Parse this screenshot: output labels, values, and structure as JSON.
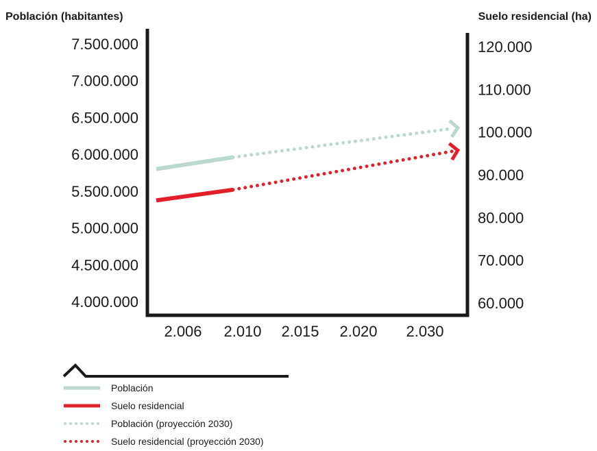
{
  "colors": {
    "poblacion": "#b9d9cc",
    "suelo": "#e3202a",
    "axis": "#1a1a1a"
  },
  "chart_data": {
    "type": "line",
    "left_axis_title": "Población (habitantes)",
    "right_axis_title": "Suelo residencial (ha)",
    "categories": [
      "2.006",
      "2.010",
      "2.015",
      "2.020",
      "2.030"
    ],
    "left_ticks": [
      "7.500.000",
      "7.000.000",
      "6.500.000",
      "6.000.000",
      "5.500.000",
      "5.000.000",
      "4.500.000",
      "4.000.000"
    ],
    "right_ticks": [
      "120.000",
      "110.000",
      "100.000",
      "90.000",
      "80.000",
      "70.000",
      "60.000"
    ],
    "left_ylim": [
      4000000,
      7500000
    ],
    "right_ylim": [
      60000,
      120000
    ],
    "grid": false,
    "series": [
      {
        "name": "Población",
        "axis": "left",
        "style": "solid",
        "color_key": "poblacion",
        "points": [
          [
            "2.006",
            5800000
          ],
          [
            "2.010",
            5960000
          ]
        ]
      },
      {
        "name": "Población (proyección 2030)",
        "axis": "left",
        "style": "dotted",
        "color_key": "poblacion",
        "points": [
          [
            "2.010",
            5960000
          ],
          [
            "2.030",
            6350000
          ]
        ]
      },
      {
        "name": "Suelo residencial",
        "axis": "right",
        "style": "solid",
        "color_key": "suelo",
        "points": [
          [
            "2.006",
            84000
          ],
          [
            "2.010",
            86500
          ]
        ]
      },
      {
        "name": "Suelo residencial (proyección 2030)",
        "axis": "right",
        "style": "dotted",
        "color_key": "suelo",
        "points": [
          [
            "2.010",
            86500
          ],
          [
            "2.030",
            95500
          ]
        ]
      }
    ],
    "legend_position": "bottom-left",
    "legend": [
      {
        "label": "Población",
        "style": "solid",
        "color_key": "poblacion"
      },
      {
        "label": "Suelo residencial",
        "style": "solid",
        "color_key": "suelo"
      },
      {
        "label": "Población (proyección 2030)",
        "style": "dotted",
        "color_key": "poblacion"
      },
      {
        "label": "Suelo residencial (proyección 2030)",
        "style": "dotted",
        "color_key": "suelo"
      }
    ]
  }
}
